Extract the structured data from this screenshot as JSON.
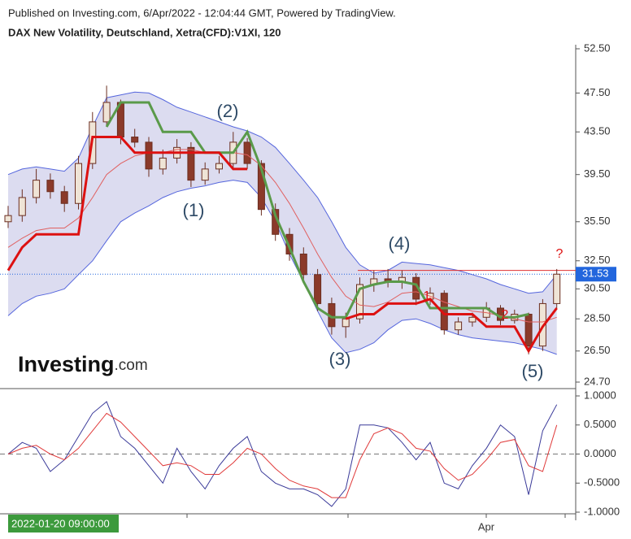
{
  "header": {
    "published": "Published on Investing.com, 6/Apr/2022 - 12:04:44 GMT, Powered by TradingView.",
    "logo": "Investing",
    "logo_suffix": ".com"
  },
  "chart_data": [
    {
      "type": "candlestick",
      "title": "DAX New Volatility, Deutschland, Xetra(CFD):V1XI, 120",
      "log_scale": true,
      "up_color": "#efe4d6",
      "down_color": "#8b3a2a",
      "edge_color": "#6b2e20",
      "open": [
        35.5,
        36.0,
        37.5,
        39.0,
        38.0,
        37.0,
        40.5,
        44.5,
        46.5,
        43.0,
        42.5,
        40.0,
        41.0,
        42.0,
        39.0,
        40.0,
        40.5,
        42.5,
        40.5,
        36.5,
        34.5,
        33.0,
        31.5,
        29.5,
        28.0,
        28.5,
        30.8,
        31.2,
        31.0,
        31.3,
        29.8,
        30.2,
        27.8,
        28.3,
        28.6,
        29.2,
        28.4,
        28.8,
        26.8,
        29.5
      ],
      "high": [
        36.8,
        38.2,
        40.0,
        39.6,
        38.5,
        41.2,
        45.5,
        48.3,
        46.8,
        43.8,
        43.0,
        41.8,
        42.8,
        42.5,
        40.6,
        41.2,
        43.5,
        42.9,
        40.8,
        37.0,
        35.0,
        33.5,
        31.9,
        29.9,
        28.9,
        31.3,
        31.8,
        31.9,
        31.8,
        31.6,
        30.6,
        30.4,
        28.6,
        28.9,
        29.6,
        29.4,
        29.1,
        28.9,
        29.8,
        31.9
      ],
      "low": [
        35.0,
        35.5,
        37.0,
        37.4,
        36.3,
        36.5,
        40.0,
        44.0,
        42.3,
        42.0,
        39.3,
        39.5,
        40.5,
        38.4,
        38.6,
        39.6,
        40.0,
        40.0,
        36.0,
        34.0,
        32.5,
        31.0,
        29.0,
        27.5,
        27.3,
        28.2,
        30.3,
        30.6,
        30.5,
        29.4,
        29.4,
        27.5,
        27.5,
        28.0,
        28.3,
        28.1,
        28.2,
        26.3,
        26.5,
        29.2
      ],
      "close": [
        36.0,
        37.5,
        39.0,
        38.0,
        37.0,
        40.5,
        44.5,
        46.5,
        43.0,
        42.5,
        40.0,
        41.0,
        42.0,
        39.0,
        40.0,
        40.5,
        42.5,
        40.5,
        36.5,
        34.5,
        33.0,
        31.5,
        29.5,
        28.0,
        28.5,
        30.8,
        31.2,
        31.0,
        31.3,
        29.8,
        30.2,
        27.8,
        28.3,
        28.6,
        29.2,
        28.4,
        28.8,
        26.8,
        29.5,
        31.53
      ],
      "band_fill": "#dcdcf0",
      "band_upper": [
        39.5,
        40,
        40.2,
        40,
        39.8,
        41,
        44,
        47,
        47.3,
        47.6,
        47.5,
        46.8,
        46,
        45.5,
        45,
        44.5,
        44,
        43.6,
        43,
        42,
        40.5,
        39,
        37.5,
        35.5,
        33.5,
        32.2,
        31.6,
        31.8,
        32.4,
        32.3,
        32.2,
        32,
        31.8,
        31.5,
        31.2,
        30.8,
        30.5,
        30.2,
        30.3,
        31.5
      ],
      "band_lower": [
        28.7,
        29.5,
        30,
        30.2,
        30.5,
        31.5,
        32.5,
        34,
        35.5,
        36.2,
        36.8,
        37.5,
        38,
        38.3,
        38.5,
        38.8,
        39,
        38.8,
        37.5,
        35.5,
        33,
        31,
        29,
        27.3,
        26.4,
        26.6,
        27,
        27.8,
        28.4,
        28.5,
        28.2,
        27.8,
        27.5,
        27.3,
        27.2,
        27.1,
        27,
        26.8,
        26.6,
        26.3
      ],
      "band_color": "#5566dd",
      "series": [
        {
          "color": "#e06060",
          "line_width": 1,
          "values": [
            33.5,
            34.2,
            34.8,
            35,
            35,
            35.8,
            37.5,
            39.5,
            40.5,
            41.2,
            41.5,
            41.5,
            41.8,
            41.8,
            41.5,
            41.5,
            41.5,
            41.3,
            40.3,
            38.8,
            37,
            35,
            33,
            31.3,
            30,
            29.4,
            29.3,
            29.6,
            30.2,
            30.3,
            30,
            29.6,
            29.3,
            29,
            28.9,
            28.7,
            28.5,
            28.3,
            28.3,
            28.6
          ]
        },
        {
          "color": "#5a9a4a",
          "line_width": 3,
          "values": [
            null,
            null,
            null,
            null,
            null,
            null,
            null,
            44,
            46.5,
            46.5,
            46.5,
            43.5,
            43.5,
            43.5,
            41.5,
            41.5,
            41.5,
            43.5,
            40,
            36,
            33.5,
            31,
            29.2,
            28.6,
            28.6,
            30.5,
            30.8,
            31,
            31,
            30.8,
            29.2,
            29.2,
            29.2,
            29.2,
            29.2,
            28.6,
            28.6,
            28.8,
            null,
            null
          ]
        },
        {
          "color": "#dd1111",
          "line_width": 3,
          "values": [
            31.8,
            33.5,
            34.5,
            34.5,
            34.5,
            34.5,
            43,
            43,
            43,
            41.5,
            41.5,
            41.5,
            41.5,
            41.5,
            41.5,
            41.5,
            40,
            40,
            null,
            null,
            null,
            null,
            null,
            null,
            28.5,
            28.8,
            28.8,
            29.5,
            29.5,
            29.5,
            29.8,
            28.8,
            28.8,
            28.8,
            28,
            28,
            28,
            26.5,
            28,
            29.2
          ]
        }
      ],
      "resistance": 31.8,
      "resistance_color": "#e03030",
      "last_price_color": "#2266dd",
      "ylim": [
        24.7,
        52.5
      ],
      "yticks": [
        {
          "value": 52.5,
          "label": "52.50"
        },
        {
          "value": 47.5,
          "label": "47.50"
        },
        {
          "value": 43.5,
          "label": "43.50"
        },
        {
          "value": 39.5,
          "label": "39.50"
        },
        {
          "value": 35.5,
          "label": "35.50"
        },
        {
          "value": 32.5,
          "label": "32.50"
        },
        {
          "value": 30.5,
          "label": "30.50"
        },
        {
          "value": 28.5,
          "label": "28.50"
        },
        {
          "value": 26.5,
          "label": "26.50"
        },
        {
          "value": 24.7,
          "label": "24.70"
        }
      ],
      "annotations": [
        "(1)",
        "(2)",
        "(3)",
        "(4)",
        "(5)",
        "?",
        "1",
        "2"
      ]
    },
    {
      "type": "line",
      "series": [
        {
          "color": "#3a3a99",
          "values": [
            0.0,
            0.2,
            0.1,
            -0.3,
            -0.1,
            0.3,
            0.7,
            0.9,
            0.3,
            0.1,
            -0.2,
            -0.5,
            0.1,
            -0.3,
            -0.6,
            -0.2,
            0.1,
            0.3,
            -0.3,
            -0.5,
            -0.6,
            -0.6,
            -0.7,
            -0.9,
            -0.6,
            0.5,
            0.5,
            0.45,
            0.2,
            -0.1,
            0.2,
            -0.5,
            -0.6,
            -0.2,
            0.1,
            0.5,
            0.3,
            -0.7,
            0.4,
            0.85
          ]
        },
        {
          "color": "#e03a3a",
          "values": [
            0.0,
            0.1,
            0.15,
            0.0,
            -0.1,
            0.1,
            0.4,
            0.7,
            0.55,
            0.3,
            0.05,
            -0.2,
            -0.15,
            -0.2,
            -0.35,
            -0.35,
            -0.15,
            0.1,
            0.0,
            -0.25,
            -0.45,
            -0.55,
            -0.6,
            -0.75,
            -0.75,
            -0.1,
            0.35,
            0.45,
            0.35,
            0.1,
            0.05,
            -0.25,
            -0.45,
            -0.35,
            -0.1,
            0.2,
            0.25,
            -0.2,
            -0.3,
            0.5
          ]
        }
      ],
      "zero_line": 0,
      "ylim": [
        -1,
        1
      ],
      "yticks": [
        {
          "value": 1,
          "label": "1.0000"
        },
        {
          "value": 0.5,
          "label": "0.5000"
        },
        {
          "value": 0,
          "label": "0.0000"
        },
        {
          "value": -0.5,
          "label": "-0.5000"
        },
        {
          "value": -1,
          "label": "-1.0000"
        }
      ],
      "x_labels": [
        "2022-01-20 09:00:00",
        "Apr"
      ]
    }
  ]
}
